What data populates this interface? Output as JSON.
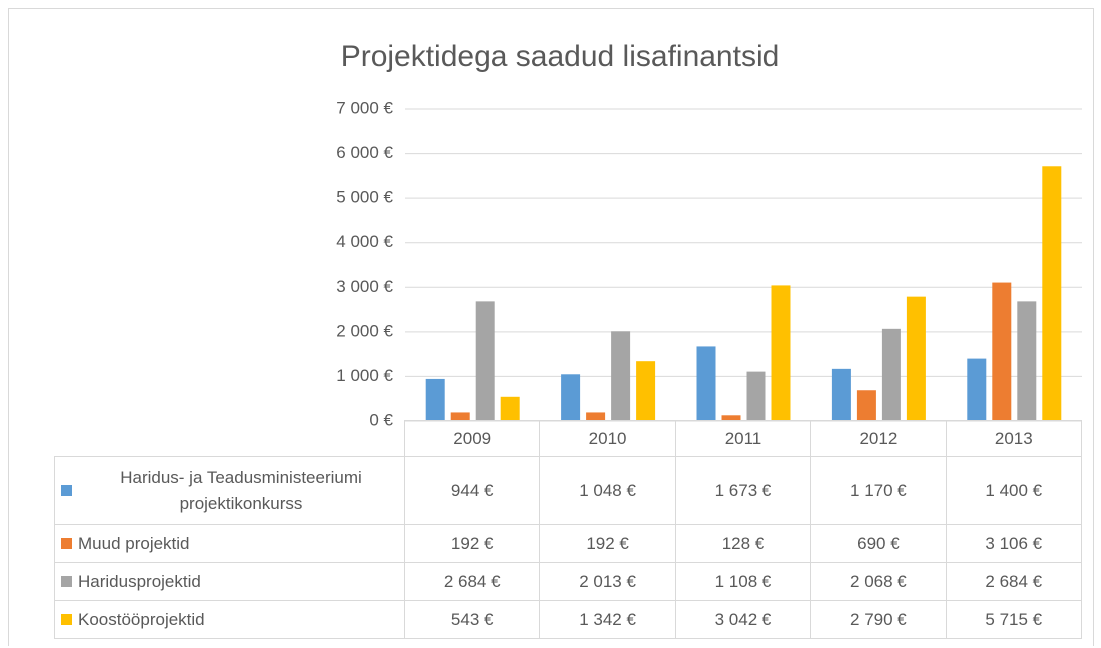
{
  "chart_data": {
    "type": "bar",
    "title": "Projektidega saadud lisafinantsid",
    "categories": [
      "2009",
      "2010",
      "2011",
      "2012",
      "2013"
    ],
    "series": [
      {
        "name": "Haridus- ja Teadusministeeriumi projektikonkurss",
        "color": "#5b9bd5",
        "values": [
          944,
          1048,
          1673,
          1170,
          1400
        ],
        "value_labels": [
          "944 €",
          "1 048 €",
          "1 673 €",
          "1 170 €",
          "1 400 €"
        ]
      },
      {
        "name": "Muud projektid",
        "color": "#ed7d31",
        "values": [
          192,
          192,
          128,
          690,
          3106
        ],
        "value_labels": [
          "192 €",
          "192 €",
          "128 €",
          "690 €",
          "3 106 €"
        ]
      },
      {
        "name": "Haridusprojektid",
        "color": "#a5a5a5",
        "values": [
          2684,
          2013,
          1108,
          2068,
          2684
        ],
        "value_labels": [
          "2 684 €",
          "2 013 €",
          "1 108 €",
          "2 068 €",
          "2 684 €"
        ]
      },
      {
        "name": "Koostööprojektid",
        "color": "#ffc000",
        "values": [
          543,
          1342,
          3042,
          2790,
          5715
        ],
        "value_labels": [
          "543 €",
          "1 342 €",
          "3 042 €",
          "2 790 €",
          "5 715 €"
        ]
      }
    ],
    "ylim": [
      0,
      7000
    ],
    "yticks": [
      {
        "value": 0,
        "label": "0 €"
      },
      {
        "value": 1000,
        "label": "1 000 €"
      },
      {
        "value": 2000,
        "label": "2 000 €"
      },
      {
        "value": 3000,
        "label": "3 000 €"
      },
      {
        "value": 4000,
        "label": "4 000 €"
      },
      {
        "value": 5000,
        "label": "5 000 €"
      },
      {
        "value": 6000,
        "label": "6 000 €"
      },
      {
        "value": 7000,
        "label": "7 000 €"
      }
    ],
    "grid": true
  }
}
